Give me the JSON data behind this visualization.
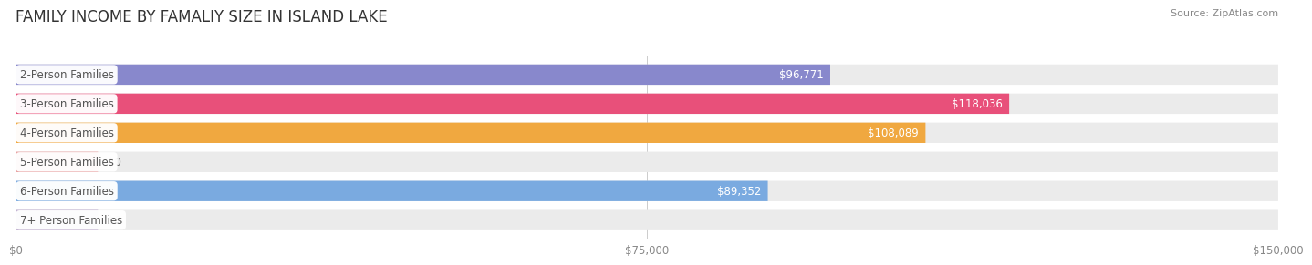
{
  "title": "FAMILY INCOME BY FAMALIY SIZE IN ISLAND LAKE",
  "source": "Source: ZipAtlas.com",
  "categories": [
    "2-Person Families",
    "3-Person Families",
    "4-Person Families",
    "5-Person Families",
    "6-Person Families",
    "7+ Person Families"
  ],
  "values": [
    96771,
    118036,
    108089,
    0,
    89352,
    0
  ],
  "bar_colors": [
    "#8888cc",
    "#e8507a",
    "#f0a840",
    "#e8a0a0",
    "#7aaae0",
    "#c0b0d0"
  ],
  "bar_bg_color": "#ebebeb",
  "label_text": "#555555",
  "value_text_color_inside": "#ffffff",
  "value_text_color_outside": "#666666",
  "xmax": 150000,
  "xticklabels": [
    "$0",
    "$75,000",
    "$150,000"
  ],
  "background_color": "#ffffff",
  "title_fontsize": 12,
  "source_fontsize": 8,
  "label_fontsize": 8.5,
  "value_fontsize": 8.5
}
